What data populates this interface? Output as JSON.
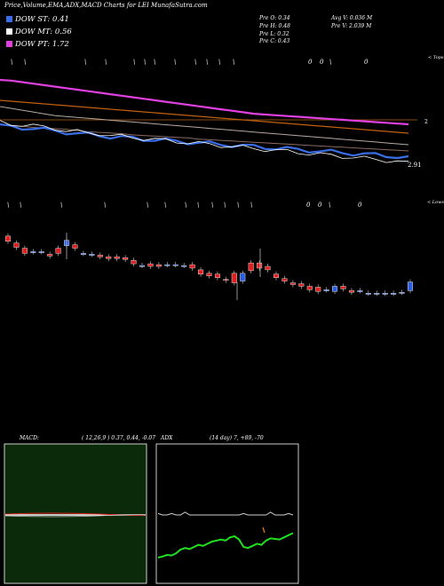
{
  "header": {
    "title": "Price,Volume,EMA,ADX,MACD Charts for LEI MunafaSutra.com"
  },
  "legend": [
    {
      "label": "DOW ST: 0.41",
      "color": "#3a6ee8"
    },
    {
      "label": "DOW MT: 0.56",
      "color": "#ffffff"
    },
    {
      "label": "DOW PT: 1.72",
      "color": "#e040e0"
    }
  ],
  "stats": {
    "open": "Pre  O: 0.34",
    "high": "Pre  H: 0.48",
    "low": "Pre  L: 0.32",
    "close": "Pre  C: 0.43",
    "avg_vol": "Avg V: 0.036  M",
    "pre_vol": "Pre  V: 2.039 M"
  },
  "price_panel": {
    "top_label": "< Tops",
    "bottom_label": "< Lows",
    "ref_label": "2",
    "last_label": "2.91",
    "top_marks": [
      "\\",
      "\\",
      "\\",
      "\\",
      "\\",
      "\\",
      "\\",
      "\\",
      "\\",
      "\\",
      "\\",
      "\\",
      "0",
      "0",
      "\\",
      "0"
    ],
    "bottom_marks": [
      "\\",
      "\\",
      "\\",
      "\\",
      "\\",
      "\\",
      "\\",
      "\\",
      "\\",
      "\\",
      "\\",
      "\\",
      "0",
      "0",
      "\\",
      "0"
    ]
  },
  "macd": {
    "label": "MACD:",
    "params": "( 12,26,9 ) 0.37, 0.44, -0.07",
    "bg_color": "#0a2a0a"
  },
  "adx": {
    "label": "ADX",
    "params": "(14  day) 7,  +89, -70"
  },
  "chart_data": {
    "type": "candlestick",
    "candles": [
      {
        "o": 0.76,
        "c": 0.7
      },
      {
        "o": 0.68,
        "c": 0.63
      },
      {
        "o": 0.62,
        "c": 0.56
      },
      {
        "o": 0.58,
        "c": 0.58
      },
      {
        "o": 0.58,
        "c": 0.58
      },
      {
        "o": 0.55,
        "c": 0.53
      },
      {
        "o": 0.62,
        "c": 0.56
      },
      {
        "o": 0.65,
        "c": 0.71
      },
      {
        "o": 0.66,
        "c": 0.62
      },
      {
        "o": 0.56,
        "c": 0.56
      },
      {
        "o": 0.55,
        "c": 0.55
      },
      {
        "o": 0.54,
        "c": 0.52
      },
      {
        "o": 0.52,
        "c": 0.5
      },
      {
        "o": 0.52,
        "c": 0.5
      },
      {
        "o": 0.51,
        "c": 0.49
      },
      {
        "o": 0.48,
        "c": 0.44
      },
      {
        "o": 0.42,
        "c": 0.42
      },
      {
        "o": 0.44,
        "c": 0.41
      },
      {
        "o": 0.43,
        "c": 0.41
      },
      {
        "o": 0.43,
        "c": 0.43
      },
      {
        "o": 0.43,
        "c": 0.43
      },
      {
        "o": 0.42,
        "c": 0.42
      },
      {
        "o": 0.43,
        "c": 0.39
      },
      {
        "o": 0.37,
        "c": 0.32
      },
      {
        "o": 0.33,
        "c": 0.3
      },
      {
        "o": 0.32,
        "c": 0.28
      },
      {
        "o": 0.26,
        "c": 0.25
      },
      {
        "o": 0.33,
        "c": 0.22
      },
      {
        "o": 0.24,
        "c": 0.33
      },
      {
        "o": 0.45,
        "c": 0.36
      },
      {
        "o": 0.45,
        "c": 0.39
      },
      {
        "o": 0.41,
        "c": 0.37
      },
      {
        "o": 0.32,
        "c": 0.28
      },
      {
        "o": 0.27,
        "c": 0.24
      },
      {
        "o": 0.22,
        "c": 0.2
      },
      {
        "o": 0.21,
        "c": 0.18
      },
      {
        "o": 0.18,
        "c": 0.14
      },
      {
        "o": 0.17,
        "c": 0.12
      },
      {
        "o": 0.14,
        "c": 0.14
      },
      {
        "o": 0.12,
        "c": 0.18
      },
      {
        "o": 0.18,
        "c": 0.15
      },
      {
        "o": 0.13,
        "c": 0.11
      },
      {
        "o": 0.13,
        "c": 0.13
      },
      {
        "o": 0.1,
        "c": 0.1
      },
      {
        "o": 0.1,
        "c": 0.1
      },
      {
        "o": 0.1,
        "c": 0.1
      },
      {
        "o": 0.1,
        "c": 0.1
      },
      {
        "o": 0.11,
        "c": 0.11
      },
      {
        "o": 0.13,
        "c": 0.23
      }
    ],
    "series": [
      {
        "values": [
          1.0,
          0.99,
          0.97,
          0.95,
          0.93,
          0.91,
          0.89,
          0.87,
          0.85,
          0.83,
          0.81,
          0.79,
          0.77,
          0.75,
          0.73,
          0.71,
          0.69,
          0.67,
          0.65,
          0.63,
          0.61,
          0.59,
          0.57,
          0.55,
          0.54,
          0.53,
          0.52,
          0.51,
          0.5,
          0.49,
          0.48,
          0.47,
          0.46,
          0.45,
          0.44,
          0.43,
          0.42,
          0.41
        ]
      },
      {
        "values": [
          0.8,
          0.79,
          0.78,
          0.77,
          0.76,
          0.75,
          0.74,
          0.73,
          0.72,
          0.71,
          0.7,
          0.69,
          0.68,
          0.67,
          0.66,
          0.65,
          0.64,
          0.63,
          0.62,
          0.61,
          0.6,
          0.59,
          0.58,
          0.57,
          0.56,
          0.55,
          0.54,
          0.53,
          0.52,
          0.51,
          0.5,
          0.49,
          0.48,
          0.47,
          0.46,
          0.45,
          0.44,
          0.43
        ]
      },
      {
        "values": [
          0.68,
          0.66,
          0.64,
          0.62,
          0.6,
          0.58,
          0.57,
          0.56,
          0.55,
          0.54,
          0.53,
          0.52,
          0.51,
          0.5,
          0.49,
          0.48,
          0.47,
          0.46,
          0.45,
          0.44,
          0.43,
          0.42,
          0.41,
          0.4,
          0.39,
          0.38,
          0.37,
          0.36,
          0.35,
          0.34,
          0.33,
          0.32,
          0.31,
          0.3,
          0.29,
          0.28,
          0.27,
          0.26
        ]
      },
      {
        "values": [
          0.5,
          0.48,
          0.47,
          0.45,
          0.44,
          0.43,
          0.42,
          0.4,
          0.38,
          0.37,
          0.36,
          0.35,
          0.33,
          0.32,
          0.31,
          0.3,
          0.29,
          0.28,
          0.26,
          0.25,
          0.24,
          0.23,
          0.22,
          0.21,
          0.2,
          0.19,
          0.18,
          0.17,
          0.16,
          0.15,
          0.14,
          0.13,
          0.12,
          0.11,
          0.1,
          0.09,
          0.08,
          0.07
        ]
      },
      {
        "values": [
          0.48,
          0.47,
          0.46,
          0.45,
          0.43,
          0.42,
          0.4,
          0.38,
          0.37,
          0.36,
          0.34,
          0.33,
          0.32,
          0.31,
          0.3,
          0.29,
          0.28,
          0.27,
          0.26,
          0.25,
          0.24,
          0.23,
          0.22,
          0.21,
          0.2,
          0.19,
          0.18,
          0.17,
          0.16,
          0.15,
          0.14,
          0.13,
          0.12,
          0.11,
          0.1,
          0.09,
          0.08,
          0.06
        ]
      },
      {
        "values": [
          0.46,
          0.44,
          0.44,
          0.43,
          0.41,
          0.4,
          0.38,
          0.37,
          0.35,
          0.35,
          0.33,
          0.32,
          0.31,
          0.3,
          0.29,
          0.28,
          0.27,
          0.26,
          0.25,
          0.24,
          0.23,
          0.22,
          0.21,
          0.2,
          0.19,
          0.18,
          0.17,
          0.16,
          0.15,
          0.14,
          0.13,
          0.12,
          0.11,
          0.1,
          0.09,
          0.08,
          0.07,
          0.05
        ]
      }
    ],
    "adx_series": [
      {
        "values": [
          0.2,
          0.22,
          0.25,
          0.24,
          0.28,
          0.35,
          0.38,
          0.36,
          0.4,
          0.44,
          0.42,
          0.46,
          0.5,
          0.52,
          0.54,
          0.52,
          0.58,
          0.6,
          0.54,
          0.4,
          0.38,
          0.42,
          0.46,
          0.44,
          0.52,
          0.56,
          0.55,
          0.54,
          0.58,
          0.62,
          0.66
        ]
      },
      {
        "values": [
          0.82,
          0.8,
          0.8,
          0.82,
          0.8,
          0.8,
          0.84,
          0.8,
          0.8,
          0.8,
          0.8,
          0.8,
          0.8,
          0.8,
          0.8,
          0.8,
          0.8,
          0.8,
          0.8,
          0.82,
          0.8,
          0.8,
          0.8,
          0.8,
          0.8,
          0.84,
          0.8,
          0.8,
          0.8,
          0.82,
          0.8
        ]
      }
    ],
    "xlabel": "",
    "ylabel": ""
  }
}
